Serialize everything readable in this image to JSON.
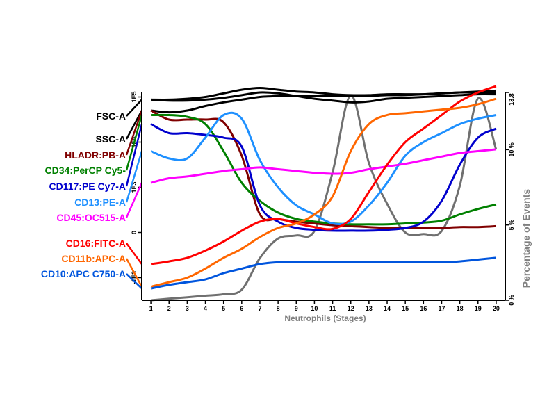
{
  "chart_data": {
    "type": "line",
    "xlabel": "Neutrophils (Stages)",
    "ylabel_right": "Percentage of Events",
    "x": [
      1,
      2,
      3,
      4,
      5,
      6,
      7,
      8,
      9,
      10,
      11,
      12,
      13,
      14,
      15,
      16,
      17,
      18,
      19,
      20
    ],
    "xlim": [
      0.5,
      20.5
    ],
    "left_axis": {
      "ticks": [
        {
          "label": "1E5",
          "value": 100000
        },
        {
          "label": "1E4",
          "value": 10000
        },
        {
          "label": "1E3",
          "value": 1000
        },
        {
          "label": "0",
          "value": 0
        },
        {
          "label": "-1E3",
          "value": -1000
        }
      ]
    },
    "right_axis": {
      "ticks": [
        {
          "label": "13.8",
          "value": 13.8
        },
        {
          "label": "10 %",
          "value": 10
        },
        {
          "label": "5 %",
          "value": 5
        },
        {
          "label": "0 %",
          "value": 0
        }
      ],
      "ylim": [
        0,
        13.8
      ]
    },
    "percent_series": {
      "name": "Percentage of Events",
      "color": "#707070",
      "values": [
        0.0,
        0.1,
        0.2,
        0.3,
        0.4,
        0.7,
        2.8,
        4.1,
        4.3,
        4.6,
        8.5,
        13.6,
        9.1,
        6.4,
        4.5,
        4.4,
        4.6,
        7.6,
        13.4,
        10.0
      ]
    },
    "series": [
      {
        "name": "FSC-A",
        "color": "#000000",
        "values": [
          1.47,
          1.47,
          1.48,
          1.5,
          1.54,
          1.58,
          1.6,
          1.58,
          1.56,
          1.55,
          1.53,
          1.52,
          1.52,
          1.53,
          1.53,
          1.53,
          1.54,
          1.55,
          1.56,
          1.57
        ]
      },
      {
        "name": "FSC-A",
        "color": "#000000",
        "values": [
          1.47,
          1.46,
          1.46,
          1.47,
          1.49,
          1.52,
          1.55,
          1.54,
          1.51,
          1.48,
          1.46,
          1.44,
          1.45,
          1.48,
          1.49,
          1.5,
          1.51,
          1.52,
          1.53,
          1.53
        ]
      },
      {
        "name": "SSC-A",
        "color": "#000000",
        "values": [
          1.35,
          1.33,
          1.35,
          1.4,
          1.44,
          1.47,
          1.5,
          1.51,
          1.51,
          1.51,
          1.51,
          1.51,
          1.51,
          1.52,
          1.52,
          1.53,
          1.54,
          1.55,
          1.55,
          1.55
        ]
      },
      {
        "name": "HLADR:PB-A",
        "color": "#800000",
        "values": [
          1.35,
          1.25,
          1.25,
          1.25,
          1.22,
          0.85,
          0.2,
          0.15,
          0.12,
          0.1,
          0.08,
          0.07,
          0.06,
          0.05,
          0.05,
          0.05,
          0.05,
          0.06,
          0.06,
          0.07
        ]
      },
      {
        "name": "CD34:PerCP Cy5-",
        "color": "#008000",
        "values": [
          1.3,
          1.3,
          1.28,
          1.2,
          0.9,
          0.55,
          0.35,
          0.22,
          0.15,
          0.12,
          0.1,
          0.09,
          0.09,
          0.09,
          0.1,
          0.11,
          0.13,
          0.2,
          0.26,
          0.31
        ]
      },
      {
        "name": "CD117:PE Cy7-A",
        "color": "#0000CD",
        "values": [
          1.2,
          1.1,
          1.1,
          1.08,
          1.05,
          0.95,
          0.3,
          0.12,
          0.05,
          0.03,
          0.02,
          0.02,
          0.02,
          0.03,
          0.05,
          0.12,
          0.35,
          0.75,
          1.05,
          1.15
        ]
      },
      {
        "name": "CD13:PE-A",
        "color": "#1E90FF",
        "values": [
          0.9,
          0.82,
          0.82,
          1.05,
          1.3,
          1.26,
          0.8,
          0.5,
          0.3,
          0.2,
          0.1,
          0.12,
          0.3,
          0.55,
          0.85,
          1.0,
          1.1,
          1.2,
          1.26,
          1.3
        ]
      },
      {
        "name": "CD45:OC515-A",
        "color": "#FF00FF",
        "values": [
          0.55,
          0.6,
          0.62,
          0.65,
          0.68,
          0.7,
          0.72,
          0.7,
          0.68,
          0.66,
          0.65,
          0.66,
          0.7,
          0.73,
          0.76,
          0.8,
          0.84,
          0.88,
          0.9,
          0.92
        ]
      },
      {
        "name": "CD16:FITC-A",
        "color": "#FF0000",
        "values": [
          -0.35,
          -0.32,
          -0.28,
          -0.2,
          -0.1,
          0.02,
          0.12,
          0.15,
          0.1,
          0.06,
          0.04,
          0.15,
          0.45,
          0.75,
          1.0,
          1.15,
          1.3,
          1.45,
          1.55,
          1.62
        ]
      },
      {
        "name": "CD11b:APC-A",
        "color": "#FF6600",
        "values": [
          -0.6,
          -0.55,
          -0.5,
          -0.4,
          -0.28,
          -0.18,
          -0.05,
          0.05,
          0.1,
          0.2,
          0.4,
          0.9,
          1.2,
          1.3,
          1.32,
          1.34,
          1.36,
          1.38,
          1.42,
          1.48
        ]
      },
      {
        "name": "CD10:APC C750-A",
        "color": "#0055DD",
        "values": [
          -0.62,
          -0.58,
          -0.55,
          -0.52,
          -0.45,
          -0.4,
          -0.35,
          -0.33,
          -0.33,
          -0.33,
          -0.33,
          -0.33,
          -0.33,
          -0.33,
          -0.33,
          -0.33,
          -0.33,
          -0.32,
          -0.3,
          -0.28
        ]
      }
    ]
  }
}
